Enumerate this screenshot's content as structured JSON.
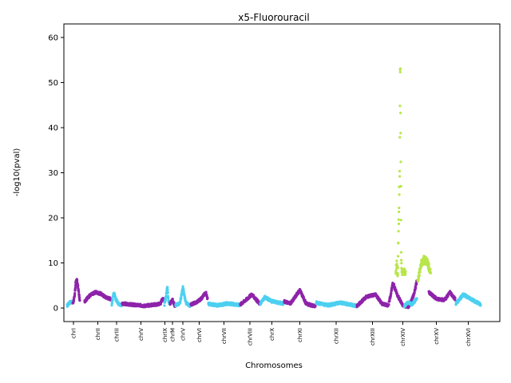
{
  "chart_data": {
    "type": "scatter",
    "title": "x5-Fluorouracil",
    "xlabel": "Chromosomes",
    "ylabel": "-log10(pval)",
    "ylim": [
      -3,
      63
    ],
    "yticks": [
      0,
      10,
      20,
      30,
      40,
      50,
      60
    ],
    "grid": false,
    "colors": {
      "odd": "#4DD0F0",
      "even": "#8E24AA",
      "significant": "#B8E64A",
      "axis": "#000000"
    },
    "chromosomes": [
      "chrI",
      "chrII",
      "chrIII",
      "chrV",
      "chrIX",
      "chrM",
      "chrV",
      "chrVI",
      "chrVII",
      "chrVIII",
      "chrX",
      "chrXI",
      "chrXII",
      "chrXIII",
      "chrXIV",
      "chrXV",
      "chrXVI"
    ],
    "regions": [
      {
        "chrom": "chrI",
        "color": "odd",
        "points": [
          [
            0,
            0.5
          ],
          [
            0.3,
            1.0
          ],
          [
            0.6,
            1.4
          ],
          [
            1.0,
            1.2
          ]
        ]
      },
      {
        "chrom": "chrI",
        "color": "even",
        "points": [
          [
            0,
            1.0
          ],
          [
            0.25,
            2.5
          ],
          [
            0.4,
            5.5
          ],
          [
            0.6,
            6.0
          ],
          [
            0.8,
            4.0
          ],
          [
            1.0,
            1.5
          ]
        ]
      },
      {
        "chrom": "chrII",
        "color": "even",
        "points": [
          [
            0,
            1.5
          ],
          [
            0.2,
            2.8
          ],
          [
            0.4,
            3.5
          ],
          [
            0.6,
            3.2
          ],
          [
            0.8,
            2.4
          ],
          [
            1.0,
            2.0
          ]
        ]
      },
      {
        "chrom": "chrIII",
        "color": "odd",
        "points": [
          [
            0,
            0.8
          ],
          [
            0.2,
            3.5
          ],
          [
            0.4,
            2.0
          ],
          [
            0.7,
            1.0
          ],
          [
            1.0,
            0.6
          ]
        ]
      },
      {
        "chrom": "chrV",
        "color": "even",
        "points": [
          [
            0,
            1.0
          ],
          [
            0.3,
            0.7
          ],
          [
            0.6,
            0.5
          ],
          [
            1.0,
            0.9
          ]
        ]
      },
      {
        "chrom": "chrIX",
        "color": "even",
        "points": [
          [
            0,
            1.0
          ],
          [
            0.3,
            1.8
          ],
          [
            0.6,
            2.0
          ],
          [
            1.0,
            1.5
          ]
        ]
      },
      {
        "chrom": "chrIX",
        "color": "odd",
        "points": [
          [
            0,
            0.8
          ],
          [
            0.4,
            3.0
          ],
          [
            0.6,
            5.0
          ],
          [
            0.8,
            2.0
          ],
          [
            1.0,
            0.8
          ]
        ]
      },
      {
        "chrom": "chrM",
        "color": "even",
        "points": [
          [
            0,
            1.0
          ],
          [
            0.5,
            1.8
          ],
          [
            1.0,
            0.5
          ]
        ]
      },
      {
        "chrom": "chrV",
        "color": "odd",
        "points": [
          [
            0,
            0.7
          ],
          [
            0.3,
            1.0
          ],
          [
            0.5,
            4.5
          ],
          [
            0.7,
            1.2
          ],
          [
            1.0,
            0.5
          ]
        ]
      },
      {
        "chrom": "chrVI",
        "color": "even",
        "points": [
          [
            0,
            0.8
          ],
          [
            0.3,
            1.2
          ],
          [
            0.6,
            2.0
          ],
          [
            0.9,
            3.5
          ],
          [
            1.0,
            2.0
          ]
        ]
      },
      {
        "chrom": "chrVII",
        "color": "odd",
        "points": [
          [
            0,
            0.9
          ],
          [
            0.3,
            0.6
          ],
          [
            0.6,
            1.0
          ],
          [
            1.0,
            0.7
          ]
        ]
      },
      {
        "chrom": "chrVIII",
        "color": "even",
        "points": [
          [
            0,
            0.8
          ],
          [
            0.4,
            2.2
          ],
          [
            0.6,
            3.0
          ],
          [
            0.8,
            2.0
          ],
          [
            1.0,
            1.0
          ]
        ]
      },
      {
        "chrom": "chrX",
        "color": "odd",
        "points": [
          [
            0,
            1.0
          ],
          [
            0.2,
            2.4
          ],
          [
            0.5,
            1.5
          ],
          [
            0.8,
            1.2
          ],
          [
            1.0,
            1.0
          ]
        ]
      },
      {
        "chrom": "chrXI",
        "color": "even",
        "points": [
          [
            0,
            1.5
          ],
          [
            0.2,
            1.0
          ],
          [
            0.5,
            4.0
          ],
          [
            0.7,
            1.0
          ],
          [
            1.0,
            0.3
          ]
        ]
      },
      {
        "chrom": "chrXII",
        "color": "odd",
        "points": [
          [
            0,
            1.2
          ],
          [
            0.3,
            0.6
          ],
          [
            0.6,
            1.2
          ],
          [
            1.0,
            0.5
          ]
        ]
      },
      {
        "chrom": "chrXIII",
        "color": "even",
        "points": [
          [
            0,
            0.4
          ],
          [
            0.3,
            2.5
          ],
          [
            0.6,
            3.0
          ],
          [
            0.8,
            1.0
          ],
          [
            1.0,
            0.6
          ]
        ]
      },
      {
        "chrom": "chrXIV",
        "color": "even",
        "points": [
          [
            0,
            1.0
          ],
          [
            0.15,
            5.5
          ],
          [
            0.3,
            3.0
          ],
          [
            0.5,
            0.5
          ],
          [
            0.7,
            0.3
          ],
          [
            0.9,
            3.0
          ],
          [
            1.0,
            6.0
          ]
        ]
      },
      {
        "chrom": "chrXIV",
        "color": "odd",
        "points": [
          [
            0,
            0.4
          ],
          [
            0.2,
            1.0
          ],
          [
            0.4,
            1.2
          ],
          [
            0.6,
            0.8
          ],
          [
            1.0,
            2.0
          ]
        ]
      },
      {
        "chrom": "chrXIV",
        "color": "significant",
        "points": [
          [
            0,
            8.0
          ],
          [
            0.1,
            10.0
          ],
          [
            0.2,
            7.0
          ],
          [
            0.35,
            27.0
          ],
          [
            0.4,
            30.0
          ],
          [
            0.45,
            58.0
          ],
          [
            0.5,
            36.0
          ],
          [
            0.55,
            12.0
          ],
          [
            0.6,
            8.0
          ]
        ]
      },
      {
        "chrom": "chrXV",
        "color": "significant",
        "points": [
          [
            0,
            6.0
          ],
          [
            0.3,
            10.0
          ],
          [
            0.6,
            11.0
          ],
          [
            1.0,
            8.0
          ]
        ]
      },
      {
        "chrom": "chrXV",
        "color": "even",
        "points": [
          [
            0,
            3.5
          ],
          [
            0.3,
            2.0
          ],
          [
            0.6,
            1.8
          ],
          [
            0.8,
            3.5
          ],
          [
            1.0,
            2.0
          ]
        ]
      },
      {
        "chrom": "chrXVI",
        "color": "odd",
        "points": [
          [
            0,
            1.0
          ],
          [
            0.3,
            3.0
          ],
          [
            0.6,
            2.0
          ],
          [
            1.0,
            0.8
          ]
        ]
      }
    ]
  }
}
